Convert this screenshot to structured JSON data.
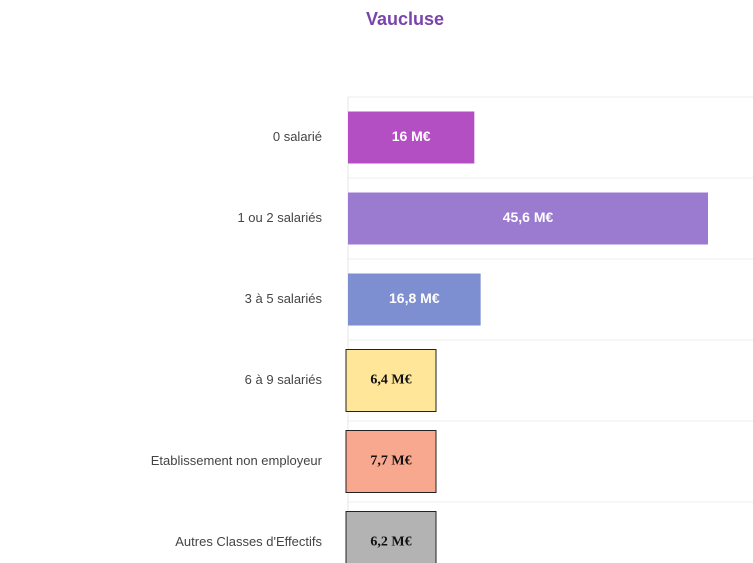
{
  "chart_data": {
    "type": "hbar",
    "title": "Vaucluse",
    "categories": [
      "0 salarié",
      "1 ou 2 salariés",
      "3 à 5 salariés",
      "6 à 9 salariés",
      "Etablissement non employeur",
      "Autres Classes d'Effectifs"
    ],
    "values": [
      16,
      45.6,
      16.8,
      6.4,
      7.7,
      6.2
    ],
    "value_labels": [
      "16 M€",
      "45,6 M€",
      "16,8 M€",
      "6,4 M€",
      "7,7 M€",
      "6,2 M€"
    ],
    "colors": [
      "#b34fc3",
      "#9b7bd0",
      "#7d8ed1",
      "#ffe699",
      "#f8a88e",
      "#b3b3b3"
    ],
    "grid": true
  }
}
